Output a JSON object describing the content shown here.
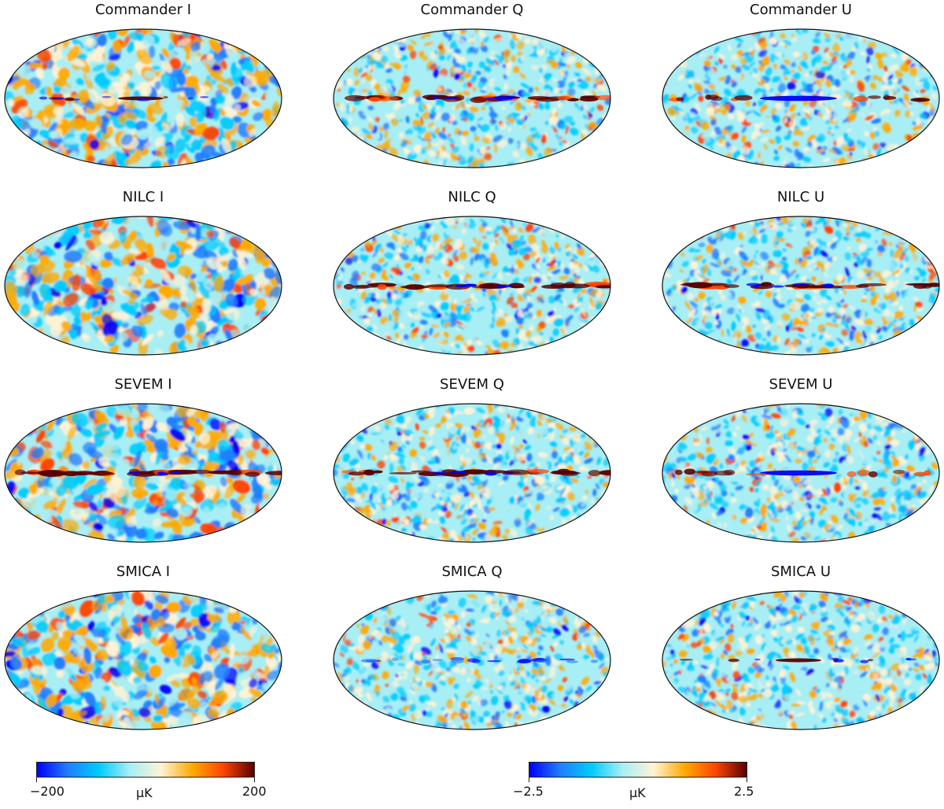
{
  "panels": [
    {
      "title": "Commander I",
      "kind": "I",
      "band": "mixed",
      "seed": 11
    },
    {
      "title": "Commander Q",
      "kind": "Q",
      "band": "dark",
      "seed": 12
    },
    {
      "title": "Commander U",
      "kind": "U",
      "band": "split",
      "seed": 13
    },
    {
      "title": "NILC I",
      "kind": "I",
      "band": "none",
      "seed": 21
    },
    {
      "title": "NILC Q",
      "kind": "Q",
      "band": "dark",
      "seed": 22
    },
    {
      "title": "NILC U",
      "kind": "U",
      "band": "dark",
      "seed": 23
    },
    {
      "title": "SEVEM I",
      "kind": "I",
      "band": "dark",
      "seed": 31
    },
    {
      "title": "SEVEM Q",
      "kind": "Q",
      "band": "dark",
      "seed": 32
    },
    {
      "title": "SEVEM U",
      "kind": "U",
      "band": "split",
      "seed": 33
    },
    {
      "title": "SMICA I",
      "kind": "I",
      "band": "none",
      "seed": 41
    },
    {
      "title": "SMICA Q",
      "kind": "Q",
      "band": "blue",
      "seed": 42
    },
    {
      "title": "SMICA U",
      "kind": "U",
      "band": "mixed",
      "seed": 43
    }
  ],
  "colorbars": [
    {
      "min_label": "−200",
      "max_label": "200",
      "unit": "μK",
      "min": -200,
      "max": 200
    },
    {
      "min_label": "−2.5",
      "max_label": "2.5",
      "unit": "μK",
      "min": -2.5,
      "max": 2.5
    }
  ],
  "colors": {
    "deep_blue": "#0000ff",
    "blue": "#1f7fff",
    "cyan": "#00ccff",
    "light_cyan": "#a8eef5",
    "cream": "#fff3d4",
    "orange": "#ffaa00",
    "red_orange": "#ff4500",
    "dark_red": "#5a0000",
    "outline": "#111111"
  }
}
